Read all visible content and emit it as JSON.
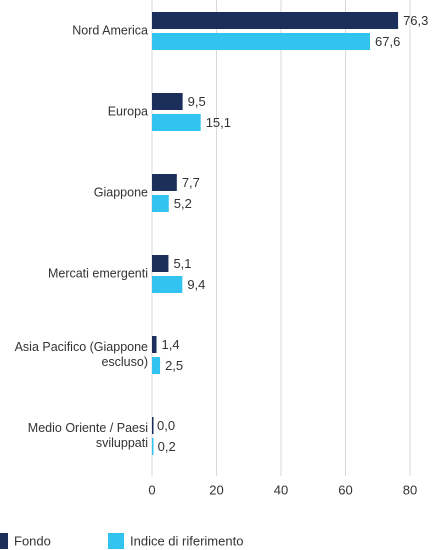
{
  "chart_data": {
    "type": "bar",
    "orientation": "horizontal",
    "categories": [
      "Nord America",
      "Europa",
      "Giappone",
      "Mercati emergenti",
      "Asia Pacifico (Giappone escluso)",
      "Medio Oriente / Paesi sviluppati"
    ],
    "series": [
      {
        "name": "Fondo",
        "color": "#1c2f5a",
        "values": [
          76.3,
          9.5,
          7.7,
          5.1,
          1.4,
          0.0
        ],
        "value_labels": [
          "76,3",
          "9,5",
          "7,7",
          "5,1",
          "1,4",
          "0,0"
        ]
      },
      {
        "name": "Indice di riferimento",
        "color": "#33c3f0",
        "values": [
          67.6,
          15.1,
          5.2,
          9.4,
          2.5,
          0.2
        ],
        "value_labels": [
          "67,6",
          "15,1",
          "5,2",
          "9,4",
          "2,5",
          "0,2"
        ]
      }
    ],
    "xlim": [
      0,
      80
    ],
    "xticks": [
      0,
      20,
      40,
      60,
      80
    ],
    "grid": true,
    "legend": "bottom"
  }
}
